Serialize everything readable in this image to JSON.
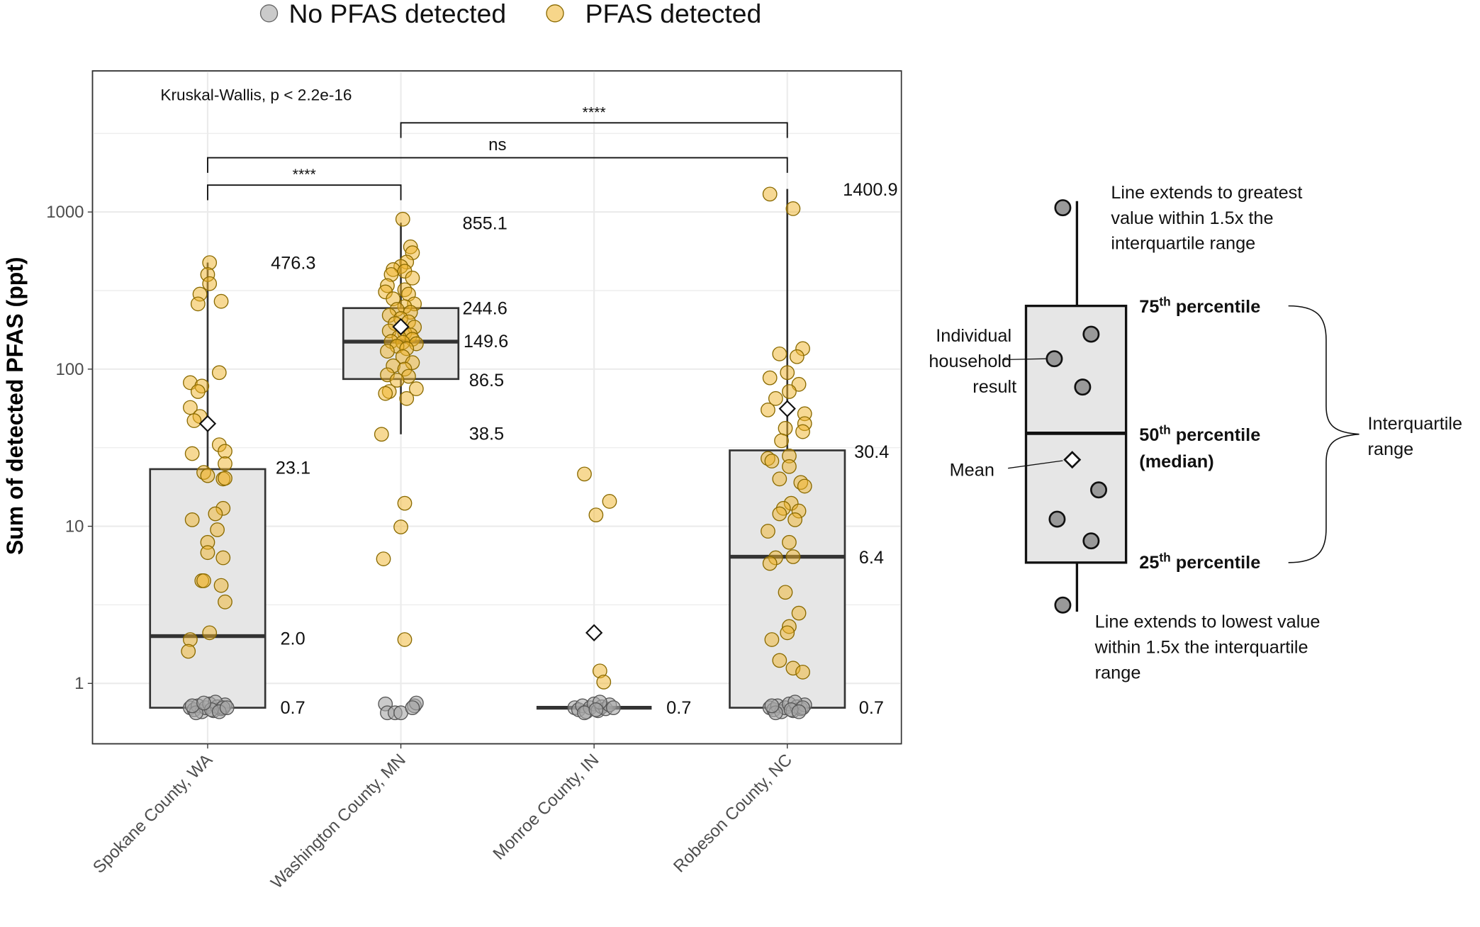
{
  "legend": {
    "items": [
      {
        "label": "No PFAS detected",
        "color": "#a6a6a6"
      },
      {
        "label": "PFAS detected",
        "color": "#f0b429"
      }
    ]
  },
  "chart_data": {
    "type": "boxplot",
    "ylabel": "Sum of detected PFAS (ppt)",
    "xlabel": "",
    "yscale": "log10",
    "ylim": [
      0.5,
      5000
    ],
    "yticks": [
      1,
      10,
      100,
      1000
    ],
    "ytick_labels": [
      "1",
      "10",
      "100",
      "1000"
    ],
    "grid": true,
    "legend_position": "top",
    "annotation": "Kruskal-Wallis, p < 2.2e-16",
    "categories": [
      "Spokane County, WA",
      "Washington County, MN",
      "Monroe County, IN",
      "Robeson County, NC"
    ],
    "boxes": [
      {
        "q1": 0.7,
        "median": 2.0,
        "q3": 23.1,
        "whisker_low": 0.7,
        "whisker_high": 476.3,
        "mean": 45,
        "labels": {
          "whisker_high": "476.3",
          "q3": "23.1",
          "median": "2.0",
          "q1": "0.7"
        }
      },
      {
        "q1": 86.5,
        "median": 149.6,
        "q3": 244.6,
        "whisker_low": 38.5,
        "whisker_high": 855.1,
        "mean": 186,
        "labels": {
          "whisker_high": "855.1",
          "q3": "244.6",
          "median": "149.6",
          "q1": "86.5",
          "whisker_low": "38.5"
        }
      },
      {
        "q1": 0.7,
        "median": 0.7,
        "q3": 0.7,
        "whisker_low": 0.7,
        "whisker_high": 0.7,
        "mean": 2.1,
        "labels": {
          "median": "0.7"
        }
      },
      {
        "q1": 0.7,
        "median": 6.4,
        "q3": 30.4,
        "whisker_low": 0.7,
        "whisker_high": 1400.9,
        "mean": 56,
        "labels": {
          "whisker_high": "1400.9",
          "q3": "30.4",
          "median": "6.4",
          "q1": "0.7"
        }
      }
    ],
    "comparisons": [
      {
        "groups": [
          0,
          1
        ],
        "label": "****"
      },
      {
        "groups": [
          0,
          3
        ],
        "label": "ns"
      },
      {
        "groups": [
          1,
          3
        ],
        "label": "****"
      }
    ],
    "points": {
      "detected": [
        [
          [
            476,
            0.01
          ],
          [
            400,
            0
          ],
          [
            350,
            0.01
          ],
          [
            300,
            -0.04
          ],
          [
            260,
            -0.05
          ],
          [
            270,
            0.07
          ],
          [
            95,
            0.06
          ],
          [
            82,
            -0.09
          ],
          [
            78,
            -0.03
          ],
          [
            72,
            -0.05
          ],
          [
            57,
            -0.09
          ],
          [
            50,
            -0.04
          ],
          [
            47,
            -0.07
          ],
          [
            33,
            0.06
          ],
          [
            30,
            0.09
          ],
          [
            29,
            -0.08
          ],
          [
            25,
            0.09
          ],
          [
            22,
            -0.02
          ],
          [
            21,
            0
          ],
          [
            20,
            0.08
          ],
          [
            20.2,
            0.09
          ],
          [
            13,
            0.08
          ],
          [
            12,
            0.04
          ],
          [
            11,
            -0.08
          ],
          [
            9.5,
            0.05
          ],
          [
            7.9,
            0
          ],
          [
            6.8,
            0
          ],
          [
            6.3,
            0.08
          ],
          [
            4.5,
            -0.03
          ],
          [
            4.5,
            -0.02
          ],
          [
            4.2,
            0.07
          ],
          [
            3.3,
            0.09
          ],
          [
            2.1,
            0.01
          ],
          [
            1.9,
            -0.09
          ],
          [
            1.6,
            -0.1
          ]
        ],
        [
          [
            900,
            0.01
          ],
          [
            600,
            0.05
          ],
          [
            550,
            0.06
          ],
          [
            480,
            0.03
          ],
          [
            450,
            0
          ],
          [
            430,
            -0.04
          ],
          [
            420,
            0.02
          ],
          [
            400,
            -0.05
          ],
          [
            380,
            0.06
          ],
          [
            340,
            -0.07
          ],
          [
            320,
            0.02
          ],
          [
            310,
            -0.08
          ],
          [
            300,
            0.04
          ],
          [
            280,
            -0.04
          ],
          [
            260,
            0.07
          ],
          [
            250,
            0.02
          ],
          [
            240,
            -0.02
          ],
          [
            230,
            0.05
          ],
          [
            220,
            -0.06
          ],
          [
            210,
            0
          ],
          [
            200,
            0.04
          ],
          [
            195,
            -0.03
          ],
          [
            185,
            0.07
          ],
          [
            175,
            -0.06
          ],
          [
            170,
            0.02
          ],
          [
            165,
            0.05
          ],
          [
            160,
            -0.01
          ],
          [
            155,
            0.06
          ],
          [
            150,
            -0.05
          ],
          [
            148,
            0.01
          ],
          [
            145,
            0.08
          ],
          [
            140,
            -0.02
          ],
          [
            135,
            0.03
          ],
          [
            130,
            -0.07
          ],
          [
            120,
            0.01
          ],
          [
            110,
            0.06
          ],
          [
            105,
            -0.04
          ],
          [
            100,
            0.02
          ],
          [
            92,
            -0.07
          ],
          [
            90,
            0.04
          ],
          [
            85,
            -0.02
          ],
          [
            75,
            0.08
          ],
          [
            72,
            -0.06
          ],
          [
            70,
            -0.08
          ],
          [
            65,
            0.03
          ],
          [
            38.5,
            -0.1
          ],
          [
            14,
            0.02
          ],
          [
            9.9,
            0
          ],
          [
            6.2,
            -0.09
          ],
          [
            1.9,
            0.02
          ]
        ],
        [
          [
            21.5,
            -0.05
          ],
          [
            14.4,
            0.08
          ],
          [
            11.8,
            0.01
          ],
          [
            1.2,
            0.03
          ],
          [
            1.02,
            0.05
          ]
        ],
        [
          [
            1300,
            -0.09
          ],
          [
            1050,
            0.03
          ],
          [
            135,
            0.08
          ],
          [
            120,
            0.05
          ],
          [
            125,
            -0.04
          ],
          [
            88,
            -0.09
          ],
          [
            95,
            0
          ],
          [
            80,
            0.06
          ],
          [
            72,
            0.01
          ],
          [
            65,
            -0.06
          ],
          [
            55,
            -0.1
          ],
          [
            52,
            0.09
          ],
          [
            45,
            0.09
          ],
          [
            42,
            -0.01
          ],
          [
            40,
            0.08
          ],
          [
            35,
            -0.03
          ],
          [
            28,
            0.01
          ],
          [
            27,
            -0.1
          ],
          [
            26,
            -0.08
          ],
          [
            24,
            0.01
          ],
          [
            20,
            -0.04
          ],
          [
            19,
            0.07
          ],
          [
            18,
            0.09
          ],
          [
            14,
            0.02
          ],
          [
            13,
            -0.02
          ],
          [
            12.5,
            0.06
          ],
          [
            12,
            -0.04
          ],
          [
            11,
            0.04
          ],
          [
            9.3,
            -0.1
          ],
          [
            7.9,
            0.01
          ],
          [
            6.4,
            0.03
          ],
          [
            6.3,
            -0.06
          ],
          [
            5.8,
            -0.09
          ],
          [
            3.8,
            -0.01
          ],
          [
            2.8,
            0.06
          ],
          [
            2.3,
            0.01
          ],
          [
            2.1,
            0
          ],
          [
            1.9,
            -0.08
          ],
          [
            1.4,
            -0.04
          ],
          [
            1.25,
            0.03
          ],
          [
            1.18,
            0.08
          ]
        ]
      ],
      "not_detected": [
        [
          [
            0.7,
            -0.09
          ],
          [
            0.68,
            -0.07
          ],
          [
            0.72,
            -0.05
          ],
          [
            0.66,
            -0.03
          ],
          [
            0.7,
            -0.01
          ],
          [
            0.74,
            0.01
          ],
          [
            0.67,
            0.03
          ],
          [
            0.71,
            0.05
          ],
          [
            0.69,
            0.07
          ],
          [
            0.73,
            0.09
          ],
          [
            0.65,
            -0.06
          ],
          [
            0.76,
            0.04
          ],
          [
            0.7,
            0.08
          ],
          [
            0.68,
            0.02
          ],
          [
            0.72,
            -0.08
          ],
          [
            0.75,
            -0.02
          ],
          [
            0.66,
            0.06
          ],
          [
            0.7,
            0.1
          ]
        ],
        [
          [
            0.74,
            -0.08
          ],
          [
            0.65,
            -0.07
          ],
          [
            0.65,
            -0.03
          ],
          [
            0.65,
            0
          ],
          [
            0.72,
            0.07
          ],
          [
            0.75,
            0.08
          ],
          [
            0.7,
            0.06
          ]
        ],
        [
          [
            0.7,
            -0.1
          ],
          [
            0.68,
            -0.08
          ],
          [
            0.72,
            -0.06
          ],
          [
            0.66,
            -0.04
          ],
          [
            0.7,
            -0.02
          ],
          [
            0.74,
            0
          ],
          [
            0.67,
            0.02
          ],
          [
            0.71,
            0.04
          ],
          [
            0.69,
            0.06
          ],
          [
            0.73,
            0.08
          ],
          [
            0.65,
            -0.05
          ],
          [
            0.76,
            0.03
          ],
          [
            0.7,
            0.1
          ],
          [
            0.68,
            0.01
          ]
        ],
        [
          [
            0.7,
            -0.09
          ],
          [
            0.68,
            -0.07
          ],
          [
            0.72,
            -0.05
          ],
          [
            0.66,
            -0.03
          ],
          [
            0.7,
            -0.01
          ],
          [
            0.74,
            0.01
          ],
          [
            0.67,
            0.03
          ],
          [
            0.71,
            0.05
          ],
          [
            0.69,
            0.07
          ],
          [
            0.73,
            0.09
          ],
          [
            0.65,
            -0.06
          ],
          [
            0.76,
            0.04
          ],
          [
            0.7,
            0.08
          ],
          [
            0.68,
            0.02
          ],
          [
            0.72,
            -0.08
          ],
          [
            0.66,
            0.06
          ]
        ]
      ]
    }
  },
  "explainer": {
    "top_note": [
      "Line extends to greatest",
      "value within 1.5x the",
      "interquartile range"
    ],
    "p75": {
      "num": "75",
      "sup": "th",
      "text": " percentile"
    },
    "p50": {
      "num": "50",
      "sup": "th",
      "text": " percentile",
      "line2": "(median)"
    },
    "p25": {
      "num": "25",
      "sup": "th",
      "text": " percentile"
    },
    "individual": [
      "Individual",
      "household",
      "result"
    ],
    "mean": "Mean",
    "iqr": [
      "Interquartile",
      "range"
    ],
    "bottom_note": [
      "Line extends to lowest value",
      "within 1.5x the interquartile",
      "range"
    ]
  }
}
